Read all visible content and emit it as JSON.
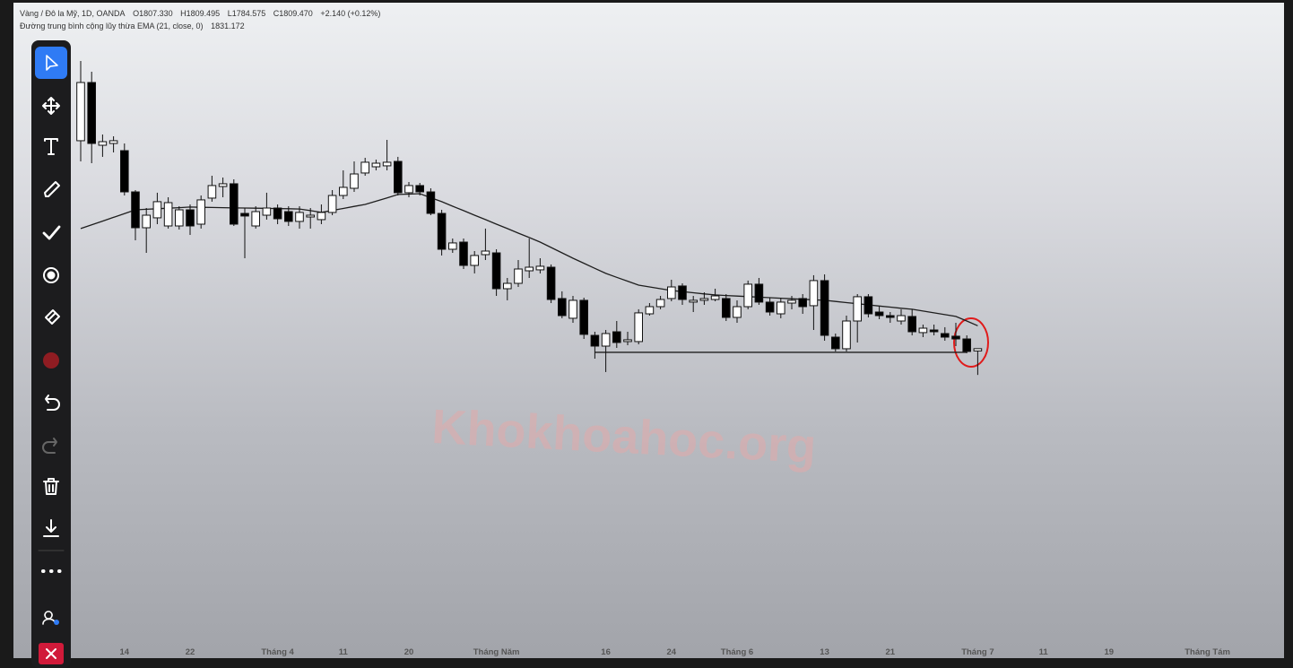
{
  "chart_data": {
    "type": "candlestick",
    "title": "Vàng / Đô la Mỹ, 1D, OANDA",
    "legend_values": [
      "O1807.330",
      "H1809.495",
      "L1784.575",
      "C1809.470",
      "+2.140 (+0.12%)"
    ],
    "up_color": "#ffffff",
    "down_color": "#000000",
    "ylim": [
      1516.1,
      2140
    ],
    "categories": [
      null,
      null,
      null,
      null,
      "14",
      null,
      null,
      null,
      null,
      null,
      "22",
      null,
      null,
      null,
      null,
      null,
      null,
      null,
      "Tháng 4",
      null,
      null,
      null,
      null,
      null,
      "11",
      null,
      null,
      null,
      null,
      null,
      "20",
      null,
      null,
      null,
      null,
      null,
      null,
      null,
      "Tháng Năm",
      null,
      null,
      null,
      null,
      null,
      null,
      null,
      null,
      null,
      "16",
      null,
      null,
      null,
      null,
      null,
      "24",
      null,
      null,
      null,
      null,
      null,
      "Tháng 6",
      null,
      null,
      null,
      null,
      null,
      null,
      null,
      "13",
      null,
      null,
      null,
      null,
      null,
      "21",
      null,
      null,
      null,
      null,
      null,
      null,
      null,
      "Tháng 7",
      null,
      null,
      null,
      null,
      null,
      "11",
      null,
      null,
      null,
      null,
      null,
      "19",
      null,
      null,
      null,
      null,
      null,
      null,
      null,
      null,
      "Tháng Tám",
      null,
      null,
      null
    ],
    "open": [
      2006.6,
      2061.8,
      2002.3,
      2004,
      1997.2,
      1958.1,
      1924.1,
      1933.5,
      1925.8,
      1925.8,
      1941.1,
      1927.5,
      1952.2,
      1963.2,
      1965.8,
      1937.7,
      1925.8,
      1936,
      1942.8,
      1939.4,
      1930.1,
      1934.3,
      1931.8,
      1938.6,
      1954.7,
      1961.5,
      1976,
      1981.9,
      1982.8,
      1987,
      1957.3,
      1964.1,
      1958.1,
      1937.7,
      1903.7,
      1910.5,
      1888.4,
      1898.6,
      1900.3,
      1866.3,
      1871.4,
      1883.3,
      1884.2,
      1886.7,
      1857,
      1838.3,
      1855.3,
      1822.1,
      1811.9,
      1825.5,
      1816.2,
      1816.2,
      1842.5,
      1849.3,
      1857,
      1868.9,
      1853.6,
      1855.3,
      1856.1,
      1857,
      1839.1,
      1849.3,
      1870.6,
      1853.6,
      1842.5,
      1852.7,
      1857,
      1850.2,
      1874,
      1820.4,
      1809.4,
      1835.7,
      1858.7,
      1844.2,
      1840.8,
      1835.7,
      1840,
      1824.7,
      1827.2,
      1823.8,
      1821.3,
      1818.7,
      1807.33,
      null,
      null,
      null,
      null,
      null,
      null,
      null,
      null,
      null,
      null,
      null,
      null,
      null,
      null,
      null,
      null,
      null,
      null,
      null,
      null,
      null,
      null,
      null,
      null
    ],
    "high": [
      2082.2,
      2072,
      2012.5,
      2010.8,
      2004,
      1959.8,
      1942.8,
      1957.3,
      1953,
      1944.5,
      1946.2,
      1954.7,
      1973.4,
      1971.7,
      1970,
      1942.8,
      1944.5,
      1957.3,
      1946.2,
      1944.5,
      1944.5,
      1942.8,
      1946.2,
      1959.8,
      1978.5,
      1987,
      1990.4,
      1988.7,
      2007.4,
      1991.3,
      1967.5,
      1966.6,
      1961.5,
      1941.1,
      1913.9,
      1913.9,
      1902,
      1923.3,
      1903.7,
      1876.5,
      1893.5,
      1913.9,
      1895.2,
      1889.3,
      1863.8,
      1859.5,
      1857.8,
      1825.5,
      1827.2,
      1835.7,
      1825.5,
      1846.8,
      1852.7,
      1859.5,
      1874.8,
      1871.4,
      1859.5,
      1862.9,
      1866.3,
      1861.2,
      1855.3,
      1874,
      1876.5,
      1857.8,
      1857.8,
      1859.5,
      1861.2,
      1879.1,
      1879.9,
      1823.8,
      1840.8,
      1861.2,
      1861.2,
      1849.3,
      1844.2,
      1846.8,
      1846.8,
      1832.3,
      1832.3,
      1829.8,
      1834,
      1822.1,
      1809.495,
      null,
      null,
      null,
      null,
      null,
      null,
      null,
      null,
      null,
      null,
      null,
      null,
      null,
      null,
      null,
      null,
      null,
      null,
      null,
      null,
      null,
      null,
      null,
      null
    ],
    "low": [
      1987,
      1985.3,
      1991.3,
      1995.5,
      1954.7,
      1912.2,
      1900.3,
      1927.5,
      1923.3,
      1922.4,
      1917.3,
      1923.3,
      1948.8,
      1953,
      1925.8,
      1895.2,
      1923.3,
      1931.8,
      1927.5,
      1925.8,
      1923.3,
      1923.3,
      1927.5,
      1936,
      1951.3,
      1958.1,
      1973.4,
      1978.5,
      1978.5,
      1954.7,
      1953,
      1954.7,
      1936,
      1897.8,
      1900.3,
      1885,
      1880.8,
      1893.5,
      1859.5,
      1855.3,
      1868,
      1876.5,
      1880.8,
      1852.7,
      1838.3,
      1834,
      1818.7,
      1800,
      1787.3,
      1810.2,
      1812.8,
      1813.6,
      1840.8,
      1846.8,
      1854.4,
      1851,
      1844.2,
      1851,
      1854.4,
      1835.7,
      1834,
      1846.8,
      1851,
      1840.8,
      1838.3,
      1846.8,
      1842.5,
      1827.2,
      1817,
      1806.8,
      1806.8,
      1815.3,
      1839.1,
      1837.4,
      1834,
      1832.3,
      1822.1,
      1820.4,
      1822.1,
      1817,
      1811.9,
      1805.1,
      1784.575,
      null,
      null,
      null,
      null,
      null,
      null,
      null,
      null,
      null,
      null,
      null,
      null,
      null,
      null,
      null,
      null,
      null,
      null,
      null,
      null,
      null,
      null,
      null,
      null
    ],
    "close": [
      2061.8,
      2004,
      2005.7,
      2006.6,
      1958.1,
      1924.1,
      1936,
      1948.8,
      1947.9,
      1941.1,
      1925.8,
      1950.5,
      1964.1,
      1965.8,
      1927.5,
      1935.2,
      1939.4,
      1942.8,
      1932.6,
      1930.1,
      1938.6,
      1936,
      1938.6,
      1954.7,
      1962.4,
      1975.1,
      1986.2,
      1985.3,
      1986.2,
      1957.3,
      1964.1,
      1958.1,
      1937.7,
      1903.7,
      1909.7,
      1888.4,
      1897.8,
      1902,
      1866.3,
      1871.4,
      1885,
      1886.7,
      1887.6,
      1856.1,
      1840.8,
      1855.3,
      1823,
      1811.9,
      1823.8,
      1815.3,
      1817.9,
      1843.4,
      1849.3,
      1856.1,
      1868,
      1856.1,
      1855.3,
      1857,
      1859.5,
      1839.1,
      1849.3,
      1870.6,
      1853.6,
      1844.2,
      1853.6,
      1855.3,
      1849.3,
      1874,
      1822.1,
      1809.4,
      1835.7,
      1858.7,
      1842.5,
      1840.8,
      1839.1,
      1840.8,
      1825.5,
      1828.9,
      1825.5,
      1820.4,
      1818.7,
      1806.8,
      1809.47,
      null,
      null,
      null,
      null,
      null,
      null,
      null,
      null,
      null,
      null,
      null,
      null,
      null,
      null,
      null,
      null,
      null,
      null,
      null,
      null,
      null,
      null,
      null,
      null
    ],
    "overlay": {
      "name": "Đường trung bình cộng lũy thừa EMA (21, close, 0)",
      "value_label": "1831.172",
      "color": "#1e1e1e",
      "values": [
        1923.3,
        1926.8,
        1930.4,
        1934,
        1937.5,
        1941.1,
        1941.6,
        1942.1,
        1942.6,
        1943.1,
        1943.7,
        1943.5,
        1943.3,
        1943.1,
        1942.9,
        1942.8,
        1942.6,
        1942.5,
        1942.3,
        1942.1,
        1941.9,
        1940.3,
        1938.6,
        1940.5,
        1942.4,
        1944.3,
        1946.2,
        1949.3,
        1952.4,
        1955.6,
        1956,
        1956.4,
        1952.6,
        1948.8,
        1944.5,
        1940.3,
        1936,
        1931.8,
        1927.5,
        1923.3,
        1919,
        1914.8,
        1910.5,
        1905.4,
        1900.3,
        1895.2,
        1890.4,
        1885.6,
        1880.8,
        1877.1,
        1873.4,
        1869.7,
        1868,
        1866.3,
        1864.6,
        1863.6,
        1862.5,
        1861.4,
        1860.4,
        1859.8,
        1859.3,
        1858.8,
        1858.3,
        1857.8,
        1857.3,
        1856.8,
        1856.3,
        1855.8,
        1855.3,
        1854.2,
        1853.1,
        1852.1,
        1851,
        1849.9,
        1848.9,
        1847.8,
        1846.8,
        1845.1,
        1843.4,
        1841.7,
        1840,
        1835.7,
        1831.172,
        null,
        null,
        null,
        null,
        null,
        null,
        null,
        null,
        null,
        null,
        null,
        null,
        null,
        null,
        null,
        null,
        null,
        null,
        null,
        null,
        null,
        null,
        null,
        null
      ]
    },
    "hline": {
      "value": 1806,
      "from_index": 47,
      "to_index": 81
    },
    "watermark": "Khokhoahoc.org"
  }
}
